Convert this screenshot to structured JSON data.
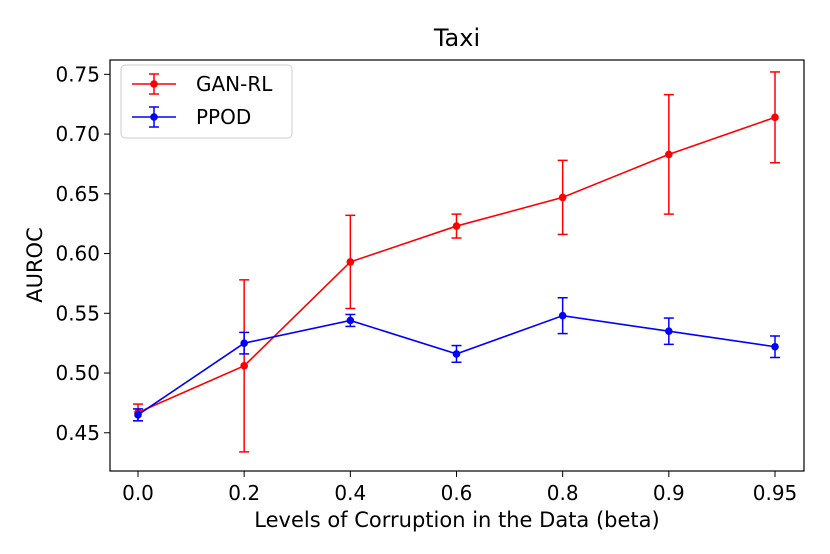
{
  "chart_data": {
    "type": "line",
    "title": "Taxi",
    "xlabel": "Levels of Corruption in the Data (beta)",
    "ylabel": "AUROC",
    "categories": [
      "0.0",
      "0.2",
      "0.4",
      "0.6",
      "0.8",
      "0.9",
      "0.95"
    ],
    "ylim": [
      0.418,
      0.762
    ],
    "yticks": [
      "0.45",
      "0.50",
      "0.55",
      "0.60",
      "0.65",
      "0.70",
      "0.75"
    ],
    "grid": false,
    "legend_position": "top-left",
    "series": [
      {
        "name": "GAN-RL",
        "color": "#ff0000",
        "values": [
          0.467,
          0.506,
          0.593,
          0.623,
          0.647,
          0.683,
          0.714
        ],
        "errors": [
          0.007,
          0.072,
          0.039,
          0.01,
          0.031,
          0.05,
          0.038
        ]
      },
      {
        "name": "PPOD",
        "color": "#0000ff",
        "values": [
          0.465,
          0.525,
          0.544,
          0.516,
          0.548,
          0.535,
          0.522
        ],
        "errors": [
          0.005,
          0.009,
          0.005,
          0.007,
          0.015,
          0.011,
          0.009
        ]
      }
    ]
  }
}
